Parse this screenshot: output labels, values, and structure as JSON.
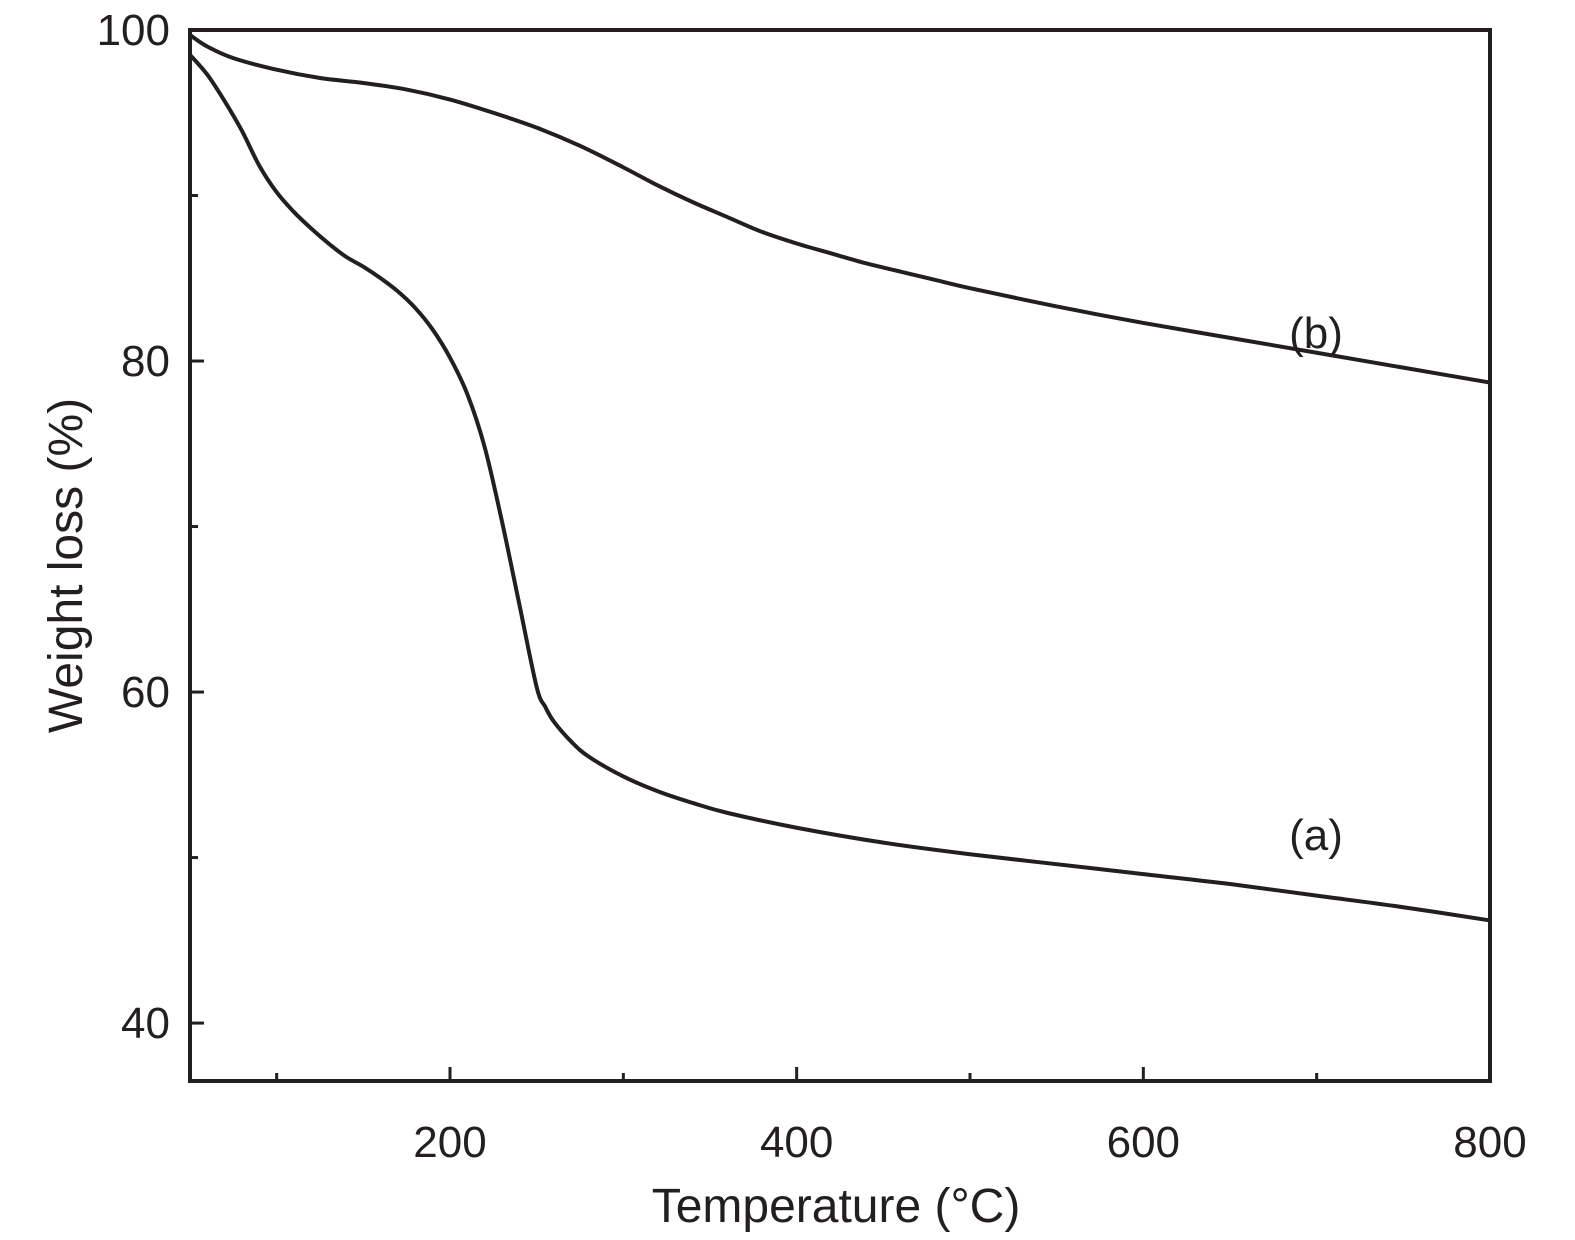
{
  "chart_data": {
    "type": "line",
    "title": "",
    "xlabel": "Temperature (°C)",
    "ylabel": "Weight loss (%)",
    "xlim": [
      50,
      800
    ],
    "ylim": [
      36.5,
      100
    ],
    "x_ticks": [
      {
        "value": 200,
        "label": "200"
      },
      {
        "value": 400,
        "label": "400"
      },
      {
        "value": 600,
        "label": "600"
      },
      {
        "value": 800,
        "label": "800"
      }
    ],
    "x_minor_ticks": [
      100,
      300,
      500,
      700
    ],
    "y_ticks": [
      {
        "value": 40,
        "label": "40"
      },
      {
        "value": 60,
        "label": "60"
      },
      {
        "value": 80,
        "label": "80"
      },
      {
        "value": 100,
        "label": "100"
      }
    ],
    "y_minor_ticks": [
      50,
      70,
      90
    ],
    "grid": false,
    "legend": "none",
    "series": [
      {
        "label": "(a)",
        "color": "#231f20",
        "points": [
          [
            50,
            98.5
          ],
          [
            60,
            97.3
          ],
          [
            70,
            95.7
          ],
          [
            80,
            93.9
          ],
          [
            90,
            91.8
          ],
          [
            100,
            90.2
          ],
          [
            110,
            89.0
          ],
          [
            120,
            88.0
          ],
          [
            130,
            87.1
          ],
          [
            140,
            86.3
          ],
          [
            150,
            85.7
          ],
          [
            160,
            85.0
          ],
          [
            170,
            84.2
          ],
          [
            180,
            83.2
          ],
          [
            190,
            81.9
          ],
          [
            200,
            80.2
          ],
          [
            210,
            78.0
          ],
          [
            220,
            74.8
          ],
          [
            230,
            70.3
          ],
          [
            240,
            65.3
          ],
          [
            250,
            60.3
          ],
          [
            255,
            59.1
          ],
          [
            260,
            58.2
          ],
          [
            270,
            57.0
          ],
          [
            280,
            56.1
          ],
          [
            300,
            54.9
          ],
          [
            320,
            54.0
          ],
          [
            340,
            53.3
          ],
          [
            360,
            52.7
          ],
          [
            400,
            51.8
          ],
          [
            450,
            50.9
          ],
          [
            500,
            50.2
          ],
          [
            550,
            49.6
          ],
          [
            600,
            49.0
          ],
          [
            650,
            48.4
          ],
          [
            700,
            47.7
          ],
          [
            750,
            47.0
          ],
          [
            800,
            46.2
          ]
        ]
      },
      {
        "label": "(b)",
        "color": "#231f20",
        "points": [
          [
            50,
            99.7
          ],
          [
            60,
            99.0
          ],
          [
            75,
            98.3
          ],
          [
            100,
            97.6
          ],
          [
            125,
            97.1
          ],
          [
            150,
            96.8
          ],
          [
            175,
            96.4
          ],
          [
            200,
            95.8
          ],
          [
            225,
            95.0
          ],
          [
            250,
            94.1
          ],
          [
            275,
            93.0
          ],
          [
            300,
            91.7
          ],
          [
            320,
            90.6
          ],
          [
            340,
            89.6
          ],
          [
            360,
            88.7
          ],
          [
            380,
            87.8
          ],
          [
            400,
            87.1
          ],
          [
            420,
            86.5
          ],
          [
            440,
            85.9
          ],
          [
            460,
            85.4
          ],
          [
            480,
            84.9
          ],
          [
            500,
            84.4
          ],
          [
            550,
            83.3
          ],
          [
            600,
            82.3
          ],
          [
            650,
            81.4
          ],
          [
            700,
            80.5
          ],
          [
            750,
            79.6
          ],
          [
            800,
            78.7
          ]
        ]
      }
    ],
    "annotations": [
      {
        "text": "(a)",
        "series": "(a)"
      },
      {
        "text": "(b)",
        "series": "(b)"
      }
    ]
  }
}
